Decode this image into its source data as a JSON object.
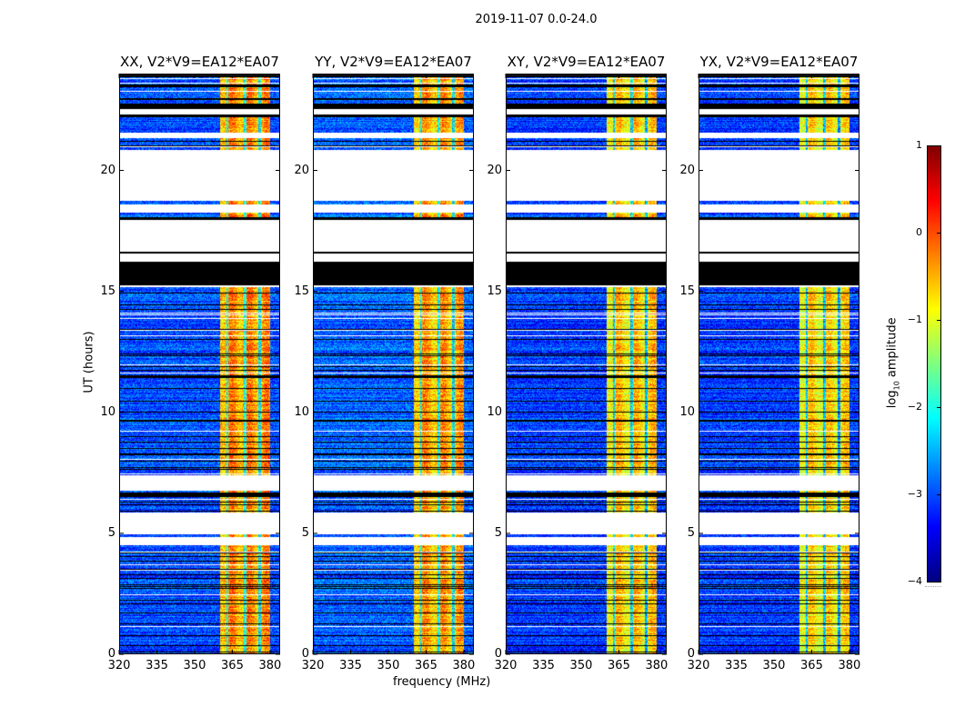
{
  "suptitle": "2019-11-07 0.0-24.0",
  "chart_data": {
    "type": "heatmap",
    "title": "2019-11-07 0.0-24.0",
    "xlabel": "frequency (MHz)",
    "ylabel": "UT (hours)",
    "xlim": [
      320,
      384
    ],
    "ylim": [
      0,
      24
    ],
    "xticks": [
      320,
      335,
      350,
      365,
      380
    ],
    "yticks": [
      0,
      5,
      10,
      15,
      20
    ],
    "panels": [
      {
        "title": "XX, V2*V9=EA12*EA07",
        "band_level": -0.4,
        "noise_level": -3.0
      },
      {
        "title": "YY, V2*V9=EA12*EA07",
        "band_level": -0.5,
        "noise_level": -2.9
      },
      {
        "title": "XY, V2*V9=EA12*EA07",
        "band_level": -0.7,
        "noise_level": -3.1
      },
      {
        "title": "YX, V2*V9=EA12*EA07",
        "band_level": -0.8,
        "noise_level": -3.1
      }
    ],
    "rfi_band_mhz": [
      360,
      380
    ],
    "weak_channels_mhz": [
      363,
      370,
      376
    ],
    "time_segments_hours": [
      {
        "from": 23.85,
        "to": 23.95,
        "state": "flagged"
      },
      {
        "from": 23.55,
        "to": 23.85,
        "state": "data"
      },
      {
        "from": 23.45,
        "to": 23.55,
        "state": "flagged"
      },
      {
        "from": 22.65,
        "to": 23.45,
        "state": "data"
      },
      {
        "from": 22.55,
        "to": 22.65,
        "state": "flagged"
      },
      {
        "from": 22.3,
        "to": 22.55,
        "state": "blank"
      },
      {
        "from": 22.2,
        "to": 22.3,
        "state": "flagged"
      },
      {
        "from": 21.55,
        "to": 22.2,
        "state": "data"
      },
      {
        "from": 21.35,
        "to": 21.55,
        "state": "blank"
      },
      {
        "from": 20.85,
        "to": 21.35,
        "state": "data"
      },
      {
        "from": 18.75,
        "to": 20.85,
        "state": "blank"
      },
      {
        "from": 18.6,
        "to": 18.75,
        "state": "data"
      },
      {
        "from": 18.25,
        "to": 18.6,
        "state": "blank"
      },
      {
        "from": 18.05,
        "to": 18.25,
        "state": "data"
      },
      {
        "from": 17.95,
        "to": 18.05,
        "state": "flagged"
      },
      {
        "from": 16.65,
        "to": 17.95,
        "state": "blank"
      },
      {
        "from": 16.58,
        "to": 16.65,
        "state": "flagged"
      },
      {
        "from": 16.22,
        "to": 16.58,
        "state": "blank"
      },
      {
        "from": 15.25,
        "to": 16.22,
        "state": "flagged"
      },
      {
        "from": 15.18,
        "to": 15.25,
        "state": "blank"
      },
      {
        "from": 7.4,
        "to": 15.18,
        "state": "data"
      },
      {
        "from": 6.75,
        "to": 7.4,
        "state": "blank"
      },
      {
        "from": 5.85,
        "to": 6.75,
        "state": "data"
      },
      {
        "from": 4.95,
        "to": 5.85,
        "state": "blank"
      },
      {
        "from": 4.85,
        "to": 4.95,
        "state": "data"
      },
      {
        "from": 4.5,
        "to": 4.85,
        "state": "blank"
      },
      {
        "from": 0,
        "to": 4.5,
        "state": "data"
      }
    ],
    "colorbar": {
      "vmin": -4,
      "vmax": 1,
      "ticks": [
        1,
        0,
        -1,
        -2,
        -3,
        -4
      ],
      "tick_labels": [
        "1",
        "0",
        "−1",
        "−2",
        "−3",
        "−4"
      ],
      "label_prefix": "log",
      "label_subscript": "10",
      "label_suffix": " amplitude",
      "colormap": "jet"
    }
  }
}
